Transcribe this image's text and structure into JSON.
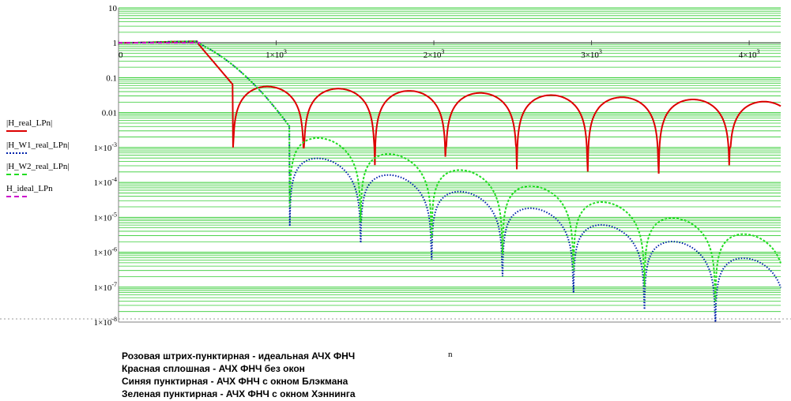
{
  "chart_data": {
    "type": "line",
    "x_ticks": [
      "0",
      "1×10^3",
      "2×10^3",
      "3×10^3",
      "4×10^3"
    ],
    "y_ticks": [
      "10",
      "1",
      "0.1",
      "0.01",
      "1×10^-3",
      "1×10^-4",
      "1×10^-5",
      "1×10^-6",
      "1×10^-7",
      "1×10^-8"
    ],
    "xlim": [
      0,
      4200
    ],
    "ylim": [
      1e-08,
      10
    ],
    "yscale": "log",
    "xlabel": "n",
    "grid": true,
    "grid_color": "#33cc33",
    "series": [
      {
        "name": "|H_real_LPn|",
        "color": "#dd0000",
        "style": "solid",
        "cutoff": 500,
        "period": 450,
        "offset": 250,
        "sidelobe_start": 0.06,
        "sidelobe_end": 0.02,
        "null_min": [
          0.001,
          0.001,
          3e-06,
          0.001,
          1e-05,
          0.0001,
          0.0001,
          0.001,
          1e-05,
          0.0001,
          0.0001,
          1e-05,
          0.0001,
          0.0001,
          0.001,
          0.0001,
          0.0001,
          0.0001,
          1e-05,
          0.0001,
          0.0001,
          0.0001
        ]
      },
      {
        "name": "|H_W1_real_LPn|",
        "color": "#0022aa",
        "style": "dotted",
        "cutoff": 500,
        "period": 450,
        "offset": 650,
        "sidelobe_start": 0.0008,
        "sidelobe_end": 4e-07
      },
      {
        "name": "|H_W2_real_LPn|",
        "color": "#22dd22",
        "style": "dashed",
        "cutoff": 500,
        "period": 450,
        "offset": 650,
        "sidelobe_start": 0.003,
        "sidelobe_end": 2e-06
      },
      {
        "name": "H_ideal_LPn",
        "color": "#cc00cc",
        "style": "dashdot",
        "cutoff": 520
      }
    ]
  },
  "legend": {
    "items": [
      {
        "label": "|H_real_LPn|",
        "color": "#dd0000",
        "style": "solid"
      },
      {
        "label": "|H_W1_real_LPn|",
        "color": "#0022aa",
        "style": "dotted"
      },
      {
        "label": "|H_W2_real_LPn|",
        "color": "#22dd22",
        "style": "dashed"
      },
      {
        "label": "H_ideal_LPn",
        "color": "#cc00cc",
        "style": "dashdot"
      }
    ]
  },
  "notes": [
    "Розовая штрих-пунктирная - идеальная АЧХ ФНЧ",
    "Красная сплошная - АЧХ ФНЧ без окон",
    "Синяя пунктирная - АЧХ ФНЧ с окном Блэкмана",
    "Зеленая пунктирная - АЧХ ФНЧ с окном Хэннинга"
  ],
  "n_label": "n"
}
